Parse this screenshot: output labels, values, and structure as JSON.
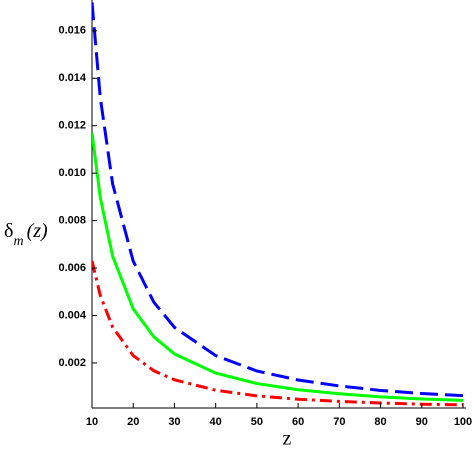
{
  "chart_data": {
    "type": "line",
    "xlabel": "z",
    "ylabel": {
      "symbol": "δ",
      "subscript": "m",
      "argument": "(z)"
    },
    "x": [
      10,
      12,
      15,
      20,
      25,
      30,
      40,
      50,
      60,
      70,
      80,
      90,
      100
    ],
    "series": [
      {
        "color": "#0000ff",
        "dash": "dashed",
        "values": [
          0.0172,
          0.0132,
          0.00955,
          0.00629,
          0.00456,
          0.0035,
          0.00231,
          0.00166,
          0.00128,
          0.00103,
          0.00084,
          0.00071,
          0.00062
        ]
      },
      {
        "color": "#00ff00",
        "dash": "solid",
        "values": [
          0.0117,
          0.00898,
          0.0065,
          0.00428,
          0.0031,
          0.00238,
          0.00157,
          0.00113,
          0.00087,
          0.0007,
          0.00057,
          0.00048,
          0.00042
        ]
      },
      {
        "color": "#ff0000",
        "dash": "dashdot",
        "values": [
          0.0063,
          0.00485,
          0.00351,
          0.00231,
          0.00167,
          0.00129,
          0.00085,
          0.00061,
          0.00047,
          0.00038,
          0.00031,
          0.00026,
          0.00023
        ]
      }
    ],
    "xlim": [
      10,
      100
    ],
    "xticks": [
      10,
      20,
      30,
      40,
      50,
      60,
      70,
      80,
      90,
      100
    ],
    "ylim": [
      0.0001,
      0.0173
    ],
    "yticks": [
      0.002,
      0.004,
      0.006,
      0.008,
      {
        "value": 0.01,
        "label": "0.010"
      },
      0.012,
      0.014,
      0.016
    ]
  }
}
